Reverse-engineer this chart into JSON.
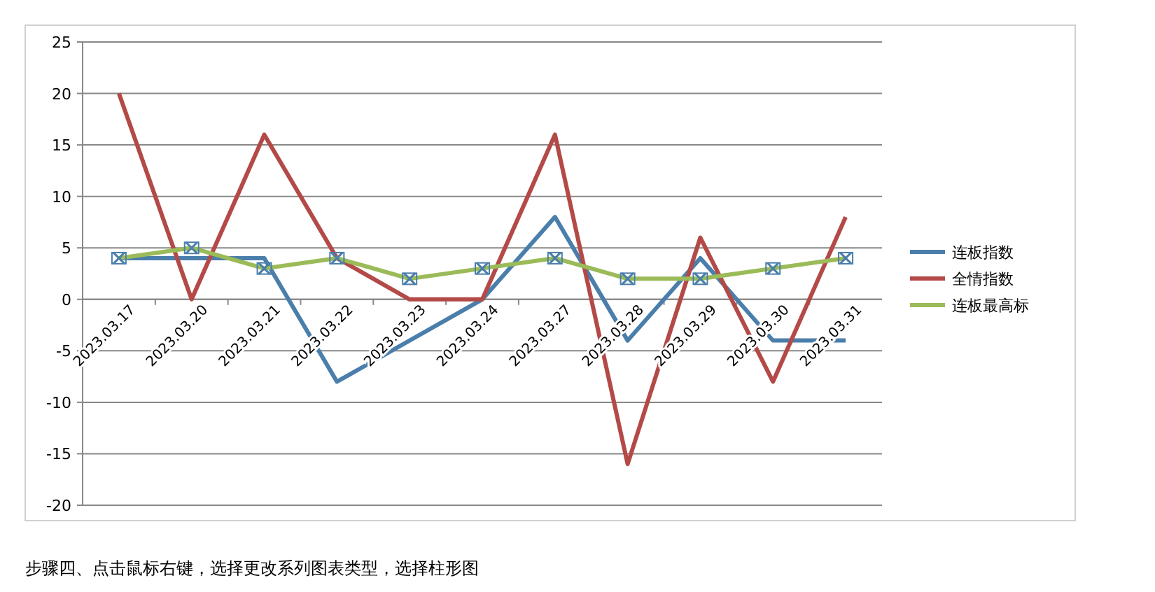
{
  "chart_data": {
    "type": "line",
    "categories": [
      "2023.03.17",
      "2023.03.20",
      "2023.03.21",
      "2023.03.22",
      "2023.03.23",
      "2023.03.24",
      "2023.03.27",
      "2023.03.28",
      "2023.03.29",
      "2023.03.30",
      "2023.03.31"
    ],
    "series": [
      {
        "name": "连板指数",
        "color": "#4a7eab",
        "values": [
          4,
          4,
          4,
          -8,
          -4,
          0,
          8,
          -4,
          4,
          -4,
          -4
        ]
      },
      {
        "name": "全情指数",
        "color": "#b34a48",
        "values": [
          20,
          0,
          16,
          4,
          0,
          0,
          16,
          -16,
          6,
          -8,
          8
        ]
      },
      {
        "name": "连板最高标",
        "color": "#9bbb59",
        "marker": "cross",
        "values": [
          4,
          5,
          3,
          4,
          2,
          3,
          4,
          2,
          2,
          3,
          4
        ]
      }
    ],
    "ylim": [
      -20,
      25
    ],
    "yticks": [
      -20,
      -15,
      -10,
      -5,
      0,
      5,
      10,
      15,
      20,
      25
    ],
    "grid": "y",
    "legend": "right",
    "line_style": "solid",
    "annotations": [
      "步骤四、点击鼠标右键，选择更改系列图表类型，选择柱形图"
    ]
  }
}
